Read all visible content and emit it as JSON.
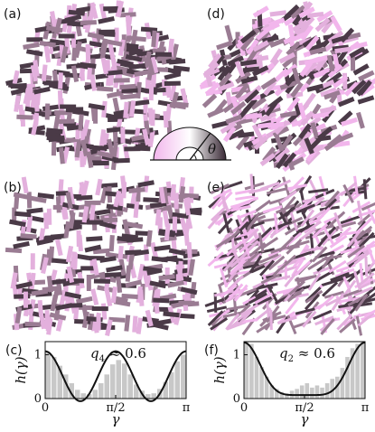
{
  "panels": {
    "a": {
      "label": "(a)",
      "pattern": "tetratic-disk"
    },
    "b": {
      "label": "(b)",
      "pattern": "tetratic-square"
    },
    "d": {
      "label": "(d)",
      "pattern": "nematic-disk"
    },
    "e": {
      "label": "(e)",
      "pattern": "nematic-square"
    }
  },
  "inset": {
    "angle_label": "θ"
  },
  "colors": {
    "dark": "#4a3a47",
    "mid": "#9a7c93",
    "light": "#e3b0dd",
    "pink": "#f2b6ec"
  },
  "chart_data": [
    {
      "type": "bar",
      "panel_label": "(c)",
      "xlabel": "γ",
      "ylabel": "h(γ)",
      "annotation": "q4 ≈ 0.6",
      "annotation_main": "q",
      "annotation_sub": "4",
      "annotation_rest": " ≈ 0.6",
      "xlim": [
        0,
        3.1416
      ],
      "ylim": [
        0,
        1.3
      ],
      "xticks": [
        {
          "value": 0,
          "label": "0"
        },
        {
          "value": 1.5708,
          "label": "π/2"
        },
        {
          "value": 3.1416,
          "label": "π"
        }
      ],
      "yticks": [
        {
          "value": 0,
          "label": "0"
        },
        {
          "value": 1,
          "label": "1"
        }
      ],
      "histogram": [
        1.05,
        0.95,
        0.75,
        0.55,
        0.35,
        0.2,
        0.12,
        0.1,
        0.2,
        0.35,
        0.55,
        0.78,
        0.88,
        0.8,
        0.55,
        0.32,
        0.18,
        0.1,
        0.12,
        0.22,
        0.38,
        0.6,
        0.85,
        1.0
      ],
      "curve": {
        "form": "cos4",
        "offset": 0.51,
        "amplitude": 0.57
      }
    },
    {
      "type": "bar",
      "panel_label": "(f)",
      "xlabel": "γ",
      "ylabel": "h(γ)",
      "annotation": "q2 ≈ 0.6",
      "annotation_main": "q",
      "annotation_sub": "2",
      "annotation_rest": " ≈ 0.6",
      "xlim": [
        0,
        3.1416
      ],
      "ylim": [
        0,
        1.3
      ],
      "xticks": [
        {
          "value": 0,
          "label": "0"
        },
        {
          "value": 1.5708,
          "label": "π/2"
        },
        {
          "value": 3.1416,
          "label": "π"
        }
      ],
      "yticks": [
        {
          "value": 0,
          "label": "0"
        },
        {
          "value": 1,
          "label": "1"
        }
      ],
      "histogram": [
        1.3,
        1.25,
        0.95,
        0.72,
        0.5,
        0.3,
        0.22,
        0.15,
        0.12,
        0.18,
        0.22,
        0.3,
        0.35,
        0.25,
        0.3,
        0.25,
        0.35,
        0.45,
        0.5,
        0.7,
        0.95,
        1.15,
        1.25,
        1.3
      ],
      "curve": {
        "form": "cos2-sharp",
        "offset": 0.08,
        "amplitude": 1.2
      }
    }
  ]
}
